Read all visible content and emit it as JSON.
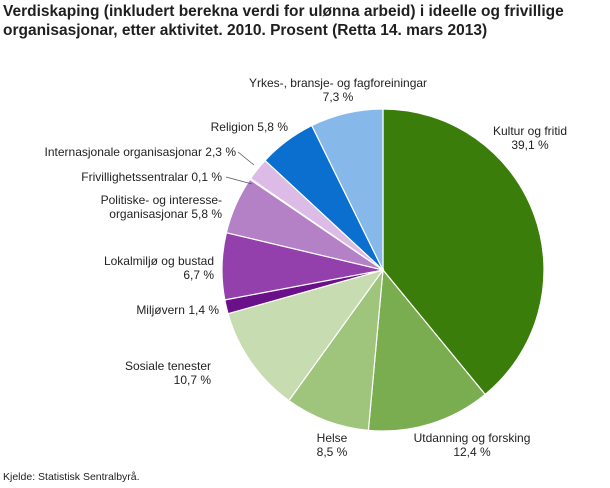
{
  "title_line1": "Verdiskaping (inkludert berekna verdi for ulønna arbeid) i ideelle og frivillige",
  "title_line2": "organisasjonar, etter aktivitet. 2010. Prosent (Retta 14. mars 2013)",
  "source": "Kjelde: Statistisk Sentralbyrå.",
  "chart_data": {
    "type": "pie",
    "title": "Verdiskaping (inkludert berekna verdi for ulønna arbeid) i ideelle og frivillige organisasjonar, etter aktivitet. 2010. Prosent (Retta 14. mars 2013)",
    "slices": [
      {
        "label": "Kultur og fritid",
        "value": 39.1,
        "value_label": "39,1 %",
        "color": "#3a7d0a"
      },
      {
        "label": "Utdanning og forsking",
        "value": 12.4,
        "value_label": "12,4 %",
        "color": "#7aad4f"
      },
      {
        "label": "Helse",
        "value": 8.5,
        "value_label": "8,5 %",
        "color": "#9fc47c"
      },
      {
        "label": "Sosiale tenester",
        "value": 10.7,
        "value_label": "10,7 %",
        "color": "#c8dcb2"
      },
      {
        "label": "Miljøvern",
        "value": 1.4,
        "value_label": "1,4 %",
        "color": "#6a1189"
      },
      {
        "label": "Lokalmiljø og bustad",
        "value": 6.7,
        "value_label": "6,7 %",
        "color": "#9340ad"
      },
      {
        "label": "Politiske- og interesse-organisasjonar",
        "value": 5.8,
        "value_label": "5,8 %",
        "color": "#b481c7"
      },
      {
        "label": "Frivillighetssentralar",
        "value": 0.1,
        "value_label": "0,1 %",
        "color": "#6a1189"
      },
      {
        "label": "Internasjonale organisasjonar",
        "value": 2.3,
        "value_label": "2,3 %",
        "color": "#dcbce6"
      },
      {
        "label": "Religion",
        "value": 5.8,
        "value_label": "5,8 %",
        "color": "#0a6fcf"
      },
      {
        "label": "Yrkes-, bransje- og fagforeiningar",
        "value": 7.3,
        "value_label": "7,3 %",
        "color": "#86b9ea"
      }
    ]
  }
}
